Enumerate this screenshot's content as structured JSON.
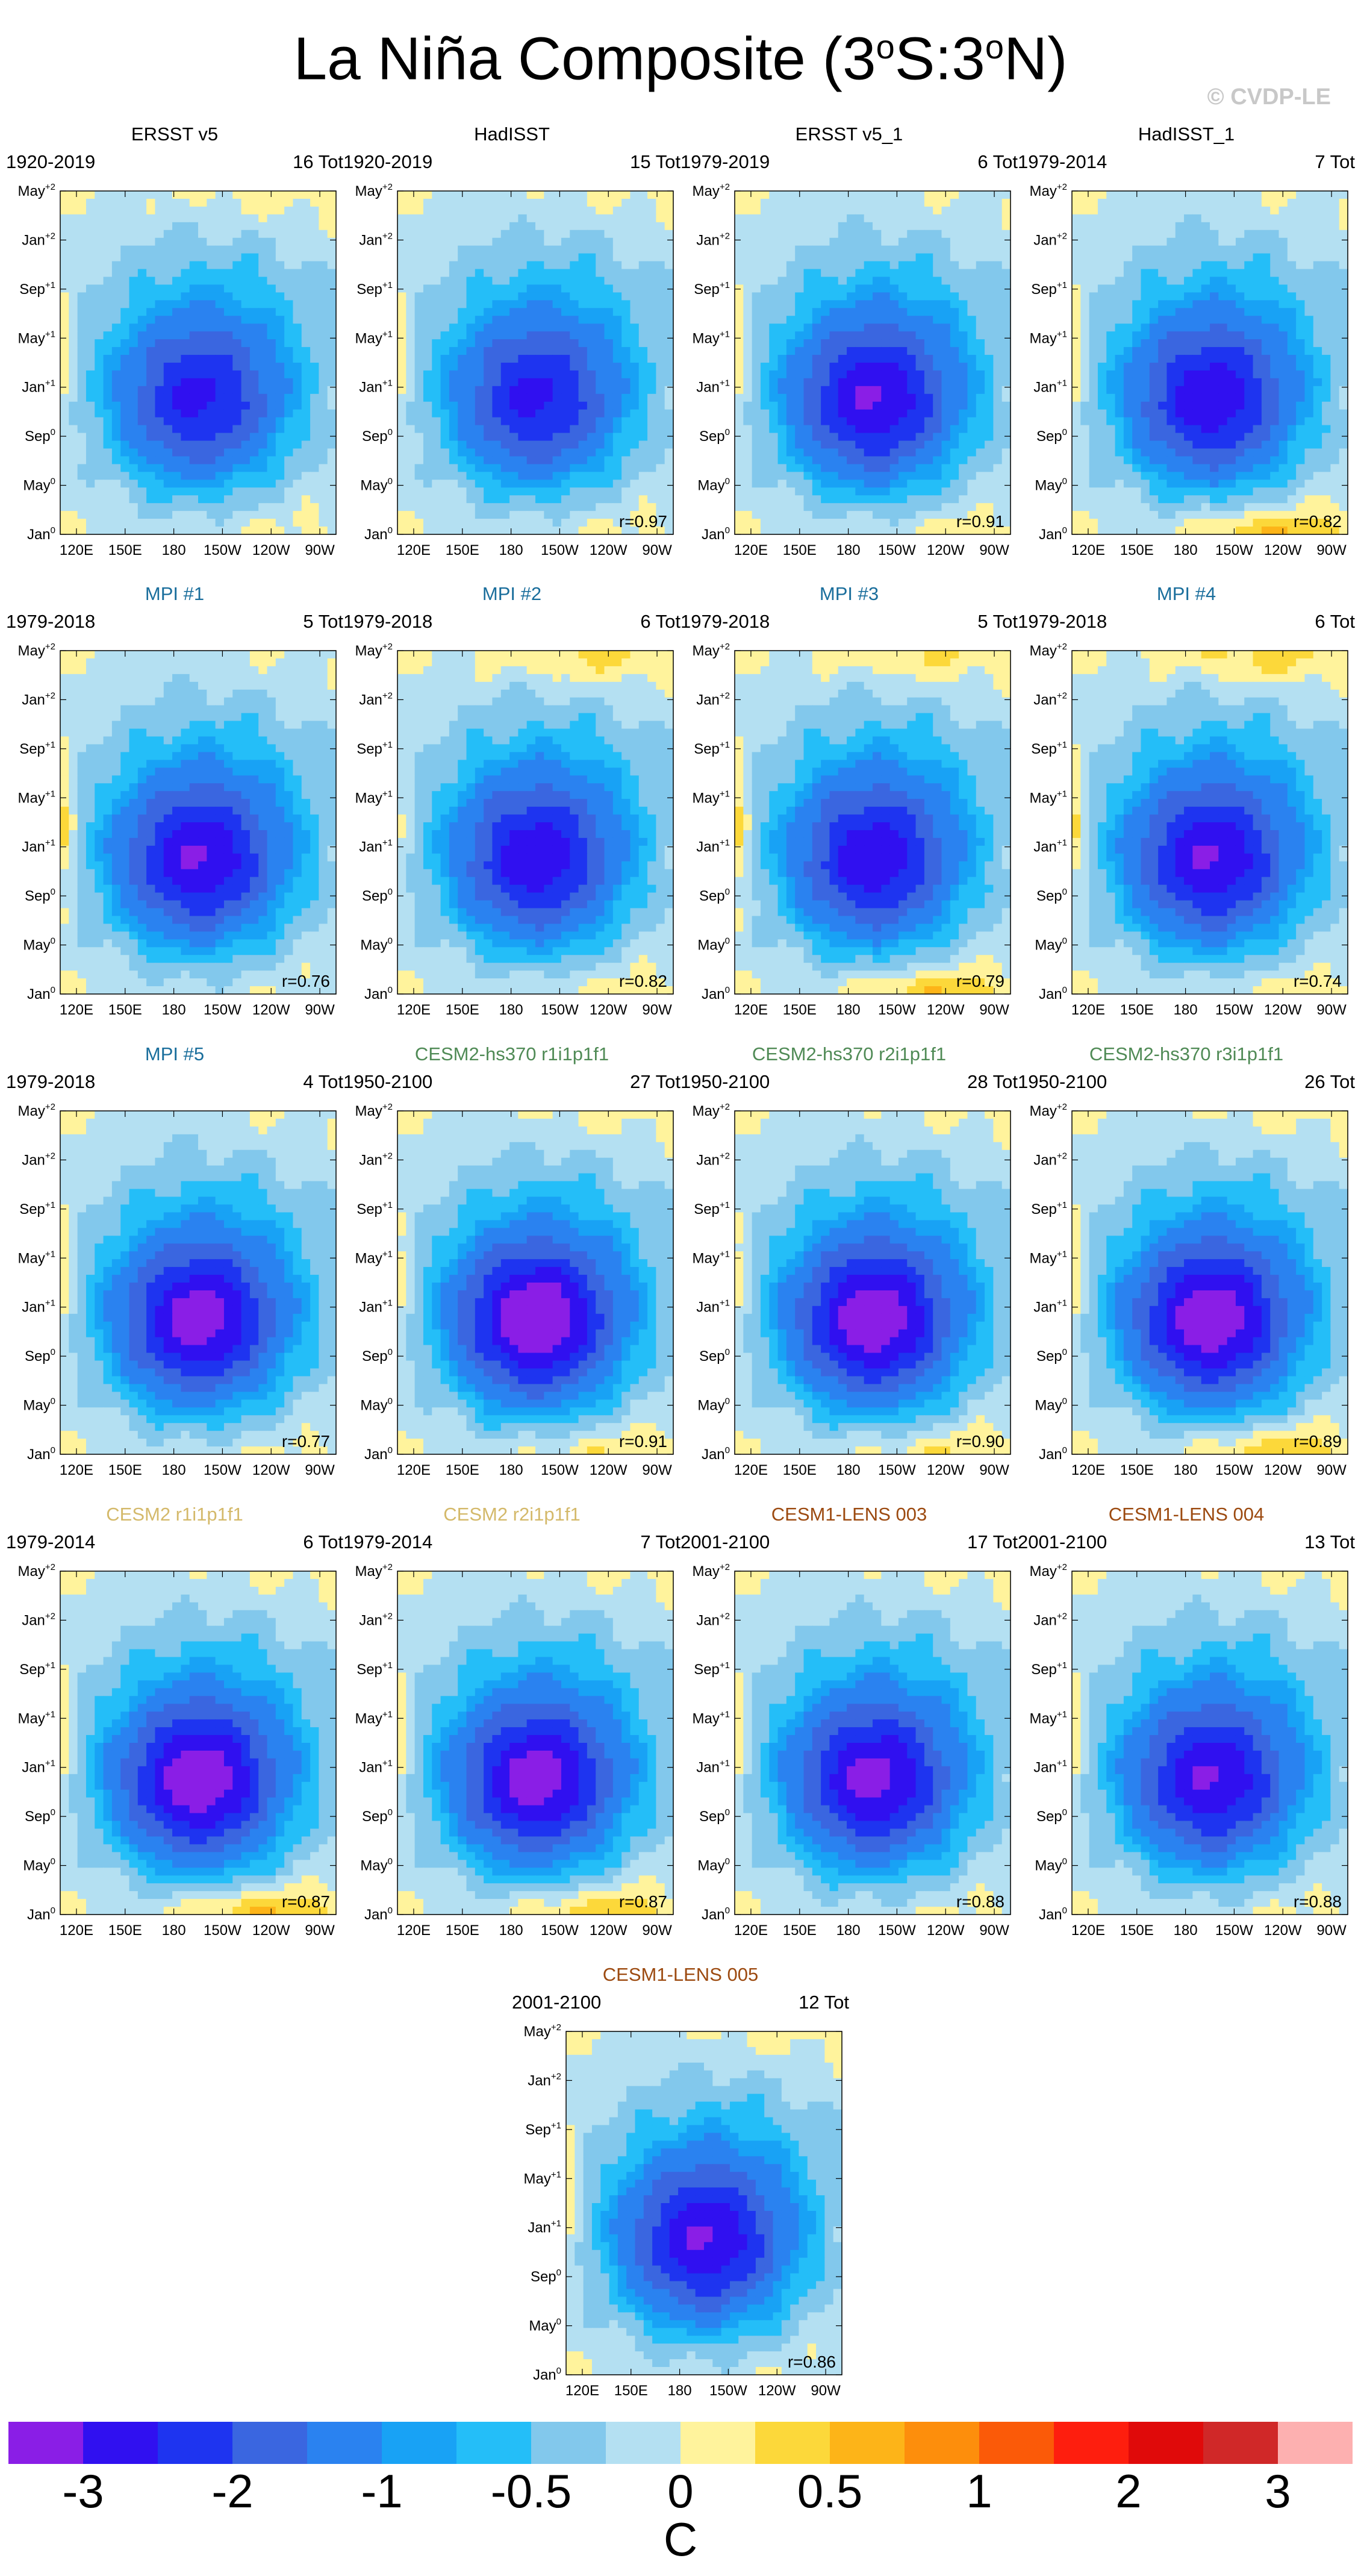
{
  "title": "La Niña Composite (3",
  "title_parts": [
    "La Niña Composite (3",
    "o",
    "S:3",
    "o",
    "N)"
  ],
  "credit": "© CVDP-LE",
  "colors": {
    "obs_title": "#000000",
    "mpi_title": "#1a6e9c",
    "cesm2hs_title": "#4f8a55",
    "cesm2_title": "#d4b96a",
    "cesm1_title": "#9c4a10"
  },
  "chart_data": {
    "type": "heatmap",
    "y_ticks": [
      {
        "month": "Jan",
        "year": "0"
      },
      {
        "month": "May",
        "year": "0"
      },
      {
        "month": "Sep",
        "year": "0"
      },
      {
        "month": "Jan",
        "year": "+1"
      },
      {
        "month": "May",
        "year": "+1"
      },
      {
        "month": "Sep",
        "year": "+1"
      },
      {
        "month": "Jan",
        "year": "+2"
      },
      {
        "month": "May",
        "year": "+2"
      }
    ],
    "x_ticks": [
      "120E",
      "150E",
      "180",
      "150W",
      "120W",
      "90W"
    ],
    "colorbar": {
      "label": "C",
      "tick_labels": [
        "-3",
        "-2",
        "-1",
        "-0.5",
        "0",
        "0.5",
        "1",
        "2",
        "3"
      ],
      "colors": [
        "#8a1ee6",
        "#3010f0",
        "#1e34f0",
        "#3a66e0",
        "#2a82f0",
        "#18a2f5",
        "#24bef8",
        "#82c8ec",
        "#b4e0f2",
        "#fff39c",
        "#fcd83a",
        "#fdb418",
        "#fd8e0c",
        "#fb5a08",
        "#fe1e0e",
        "#e00a0a",
        "#d02828",
        "#fdb0b0"
      ]
    },
    "panels": [
      {
        "title": "ERSST v5",
        "group": "obs",
        "period": "1920-2019",
        "count": "16 Tot",
        "r": "",
        "cold": 0.75,
        "warm_east": 0.2,
        "warm_west": 0.6,
        "warm_late": 0.5
      },
      {
        "title": "HadISST",
        "group": "obs",
        "period": "1920-2019",
        "count": "15 Tot",
        "r": "r=0.97",
        "cold": 0.75,
        "warm_east": 0.2,
        "warm_west": 0.6,
        "warm_late": 0.3
      },
      {
        "title": "ERSST v5_1",
        "group": "obs",
        "period": "1979-2019",
        "count": "6 Tot",
        "r": "r=0.91",
        "cold": 0.9,
        "warm_east": 0.25,
        "warm_west": 0.7,
        "warm_late": 0.2
      },
      {
        "title": "HadISST_1",
        "group": "obs",
        "period": "1979-2014",
        "count": "7 Tot",
        "r": "r=0.82",
        "cold": 0.85,
        "warm_east": 0.9,
        "warm_west": 0.7,
        "warm_late": 0.2
      },
      {
        "title": "MPI #1",
        "group": "mpi",
        "period": "1979-2018",
        "count": "5 Tot",
        "r": "r=0.76",
        "cold": 0.9,
        "warm_east": 0.1,
        "warm_west": 1.0,
        "warm_late": 0.2
      },
      {
        "title": "MPI #2",
        "group": "mpi",
        "period": "1979-2018",
        "count": "6 Tot",
        "r": "r=0.82",
        "cold": 0.85,
        "warm_east": 0.3,
        "warm_west": 0.4,
        "warm_late": 0.9
      },
      {
        "title": "MPI #3",
        "group": "mpi",
        "period": "1979-2018",
        "count": "5 Tot",
        "r": "r=0.79",
        "cold": 0.85,
        "warm_east": 0.8,
        "warm_west": 1.0,
        "warm_late": 0.8
      },
      {
        "title": "MPI #4",
        "group": "mpi",
        "period": "1979-2018",
        "count": "6 Tot",
        "r": "r=0.74",
        "cold": 0.9,
        "warm_east": 0.3,
        "warm_west": 0.9,
        "warm_late": 1.0
      },
      {
        "title": "MPI #5",
        "group": "mpi",
        "period": "1979-2018",
        "count": "4 Tot",
        "r": "r=0.77",
        "cold": 1.0,
        "warm_east": 0.2,
        "warm_west": 0.7,
        "warm_late": 0.2
      },
      {
        "title": "CESM2-hs370 r1i1p1f1",
        "group": "cesm2hs",
        "period": "1950-2100",
        "count": "27 Tot",
        "r": "r=0.91",
        "cold": 1.1,
        "warm_east": 0.5,
        "warm_west": 0.6,
        "warm_late": 0.4
      },
      {
        "title": "CESM2-hs370 r2i1p1f1",
        "group": "cesm2hs",
        "period": "1950-2100",
        "count": "28 Tot",
        "r": "r=0.90",
        "cold": 1.05,
        "warm_east": 0.5,
        "warm_west": 0.6,
        "warm_late": 0.3
      },
      {
        "title": "CESM2-hs370 r3i1p1f1",
        "group": "cesm2hs",
        "period": "1950-2100",
        "count": "26 Tot",
        "r": "r=0.89",
        "cold": 1.05,
        "warm_east": 0.8,
        "warm_west": 0.7,
        "warm_late": 0.4
      },
      {
        "title": "CESM2 r1i1p1f1",
        "group": "cesm2",
        "period": "1979-2014",
        "count": "6 Tot",
        "r": "r=0.87",
        "cold": 1.05,
        "warm_east": 0.9,
        "warm_west": 0.7,
        "warm_late": 0.3
      },
      {
        "title": "CESM2 r2i1p1f1",
        "group": "cesm2",
        "period": "1979-2014",
        "count": "7 Tot",
        "r": "r=0.87",
        "cold": 1.0,
        "warm_east": 0.8,
        "warm_west": 0.6,
        "warm_late": 0.3
      },
      {
        "title": "CESM1-LENS 003",
        "group": "cesm1",
        "period": "2001-2100",
        "count": "17 Tot",
        "r": "r=0.88",
        "cold": 0.95,
        "warm_east": 0.2,
        "warm_west": 0.6,
        "warm_late": 0.3
      },
      {
        "title": "CESM1-LENS 004",
        "group": "cesm1",
        "period": "2001-2100",
        "count": "13 Tot",
        "r": "r=0.88",
        "cold": 0.9,
        "warm_east": 0.2,
        "warm_west": 0.6,
        "warm_late": 0.3
      },
      {
        "title": "CESM1-LENS 005",
        "group": "cesm1",
        "period": "2001-2100",
        "count": "12 Tot",
        "r": "r=0.86",
        "cold": 0.9,
        "warm_east": 0.1,
        "warm_west": 0.7,
        "warm_late": 0.4
      }
    ]
  }
}
